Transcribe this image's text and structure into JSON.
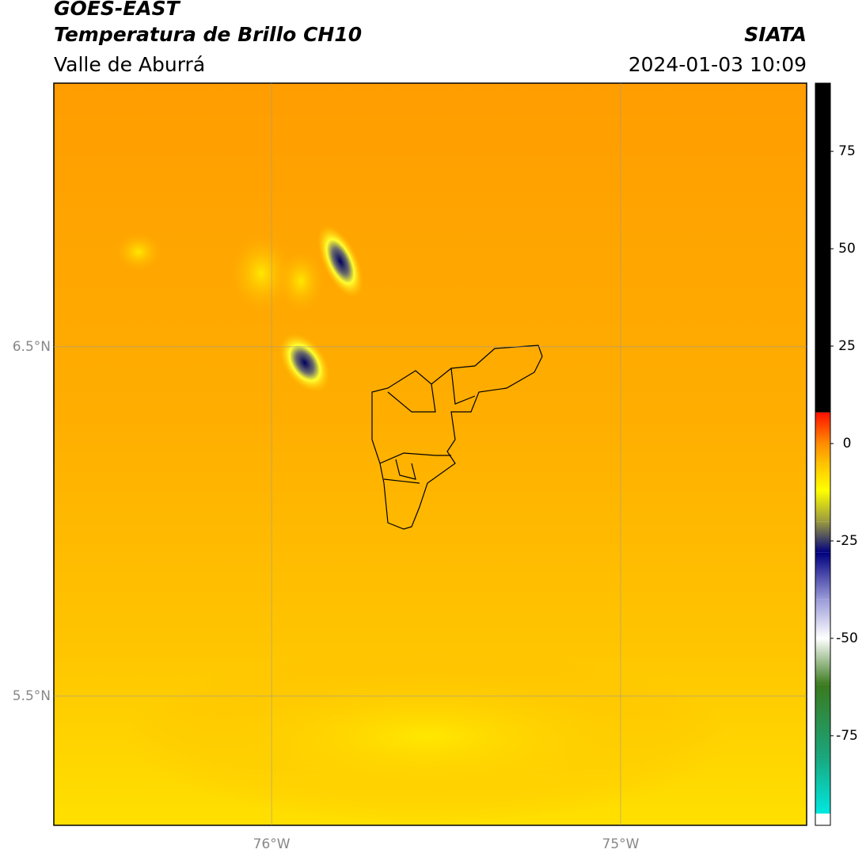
{
  "chart_data": {
    "type": "map",
    "title": "GOES-EAST",
    "subtitle": "Temperatura de Brillo CH10",
    "region": "Valle de Aburrá",
    "source": "SIATA",
    "timestamp": "2024-01-03 10:09",
    "xlim": [
      -76.624,
      -74.467
    ],
    "ylim": [
      5.13,
      7.255
    ],
    "xticks": [
      {
        "value": -76,
        "label": "76°W"
      },
      {
        "value": -75,
        "label": "75°W"
      }
    ],
    "yticks": [
      {
        "value": 6.5,
        "label": "6.5°N"
      },
      {
        "value": 5.5,
        "label": "5.5°N"
      }
    ],
    "grid": true,
    "colorbar": {
      "lim": [
        -98,
        92.5
      ],
      "ticks": [
        75,
        50,
        25,
        0,
        -25,
        -50,
        -75
      ],
      "stops": [
        {
          "value": -98,
          "color": "#ffffff"
        },
        {
          "value": -95,
          "color": "#ffffff"
        },
        {
          "value": -95,
          "color": "#00e8e0"
        },
        {
          "value": -80,
          "color": "#1aa57a"
        },
        {
          "value": -62,
          "color": "#3a7a1e"
        },
        {
          "value": -50,
          "color": "#ffffff"
        },
        {
          "value": -40,
          "color": "#9a9ad8"
        },
        {
          "value": -28,
          "color": "#000080"
        },
        {
          "value": -20,
          "color": "#9a9a40"
        },
        {
          "value": -12,
          "color": "#ffff00"
        },
        {
          "value": -5,
          "color": "#ffc000"
        },
        {
          "value": 0,
          "color": "#ff8c00"
        },
        {
          "value": 8,
          "color": "#ff1000"
        },
        {
          "value": 8,
          "color": "#000000"
        },
        {
          "value": 92.5,
          "color": "#000000"
        }
      ]
    }
  }
}
